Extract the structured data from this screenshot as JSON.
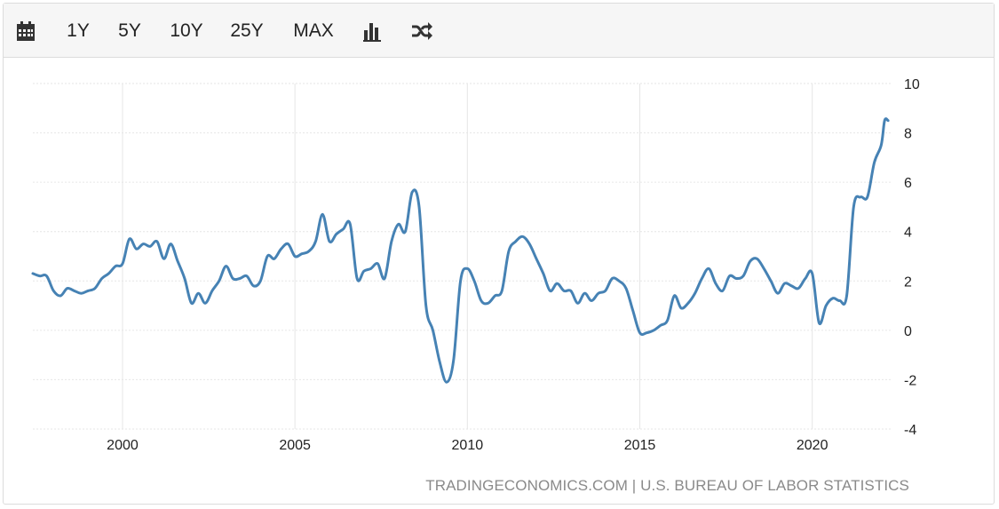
{
  "toolbar": {
    "calendar_icon": "calendar-icon",
    "ranges": [
      "1Y",
      "5Y",
      "10Y",
      "25Y",
      "MAX"
    ],
    "chart_type_icon": "bar-chart-icon",
    "compare_icon": "shuffle-icon"
  },
  "source_text": "TRADINGECONOMICS.COM | U.S. BUREAU OF LABOR STATISTICS",
  "colors": {
    "line": "#4682b4",
    "grid": "#e6e6e6",
    "axis_text": "#222222",
    "source_text": "#8a8a8a"
  },
  "chart_data": {
    "type": "line",
    "title": "",
    "xlabel": "",
    "ylabel": "",
    "xlim": [
      1997.4,
      2022.3
    ],
    "ylim": [
      -4,
      10
    ],
    "y_ticks": [
      -4,
      -2,
      0,
      2,
      4,
      6,
      8,
      10
    ],
    "x_ticks": [
      2000,
      2005,
      2010,
      2015,
      2020
    ],
    "y_tick_labels": [
      "-4",
      "-2",
      "0",
      "2",
      "4",
      "6",
      "8",
      "10"
    ],
    "x_tick_labels": [
      "2000",
      "2005",
      "2010",
      "2015",
      "2020"
    ],
    "grid": true,
    "y_axis_side": "right",
    "series": [
      {
        "x": [
          1997.4,
          1997.6,
          1997.8,
          1998.0,
          1998.2,
          1998.4,
          1998.6,
          1998.8,
          1999.0,
          1999.2,
          1999.4,
          1999.6,
          1999.8,
          2000.0,
          2000.2,
          2000.4,
          2000.6,
          2000.8,
          2001.0,
          2001.2,
          2001.4,
          2001.6,
          2001.8,
          2002.0,
          2002.2,
          2002.4,
          2002.6,
          2002.8,
          2003.0,
          2003.2,
          2003.4,
          2003.6,
          2003.8,
          2004.0,
          2004.2,
          2004.4,
          2004.6,
          2004.8,
          2005.0,
          2005.2,
          2005.4,
          2005.6,
          2005.8,
          2006.0,
          2006.2,
          2006.4,
          2006.6,
          2006.8,
          2007.0,
          2007.2,
          2007.4,
          2007.6,
          2007.8,
          2008.0,
          2008.2,
          2008.4,
          2008.6,
          2008.8,
          2009.0,
          2009.2,
          2009.4,
          2009.6,
          2009.8,
          2010.0,
          2010.2,
          2010.4,
          2010.6,
          2010.8,
          2011.0,
          2011.2,
          2011.4,
          2011.6,
          2011.8,
          2012.0,
          2012.2,
          2012.4,
          2012.6,
          2012.8,
          2013.0,
          2013.2,
          2013.4,
          2013.6,
          2013.8,
          2014.0,
          2014.2,
          2014.4,
          2014.6,
          2014.8,
          2015.0,
          2015.2,
          2015.4,
          2015.6,
          2015.8,
          2016.0,
          2016.2,
          2016.4,
          2016.6,
          2016.8,
          2017.0,
          2017.2,
          2017.4,
          2017.6,
          2017.8,
          2018.0,
          2018.2,
          2018.4,
          2018.6,
          2018.8,
          2019.0,
          2019.2,
          2019.4,
          2019.6,
          2019.8,
          2020.0,
          2020.2,
          2020.4,
          2020.6,
          2020.8,
          2021.0,
          2021.2,
          2021.4,
          2021.6,
          2021.8,
          2022.0,
          2022.1,
          2022.2
        ],
        "y": [
          2.3,
          2.2,
          2.2,
          1.6,
          1.4,
          1.7,
          1.6,
          1.5,
          1.6,
          1.7,
          2.1,
          2.3,
          2.6,
          2.7,
          3.7,
          3.3,
          3.5,
          3.4,
          3.6,
          2.9,
          3.5,
          2.8,
          2.1,
          1.1,
          1.5,
          1.1,
          1.6,
          2.0,
          2.6,
          2.1,
          2.1,
          2.2,
          1.8,
          2.0,
          3.0,
          2.9,
          3.3,
          3.5,
          3.0,
          3.1,
          3.2,
          3.6,
          4.7,
          3.6,
          3.9,
          4.1,
          4.3,
          2.1,
          2.4,
          2.5,
          2.7,
          2.1,
          3.6,
          4.3,
          4.0,
          5.6,
          5.0,
          1.0,
          0.0,
          -1.3,
          -2.1,
          -1.2,
          2.0,
          2.5,
          2.0,
          1.2,
          1.1,
          1.4,
          1.6,
          3.2,
          3.6,
          3.8,
          3.5,
          2.9,
          2.3,
          1.6,
          1.9,
          1.6,
          1.6,
          1.1,
          1.5,
          1.2,
          1.5,
          1.6,
          2.1,
          2.0,
          1.7,
          0.8,
          -0.1,
          -0.1,
          0.0,
          0.2,
          0.4,
          1.4,
          0.9,
          1.1,
          1.5,
          2.1,
          2.5,
          1.9,
          1.6,
          2.2,
          2.1,
          2.2,
          2.8,
          2.9,
          2.5,
          2.0,
          1.5,
          1.9,
          1.8,
          1.7,
          2.1,
          2.3,
          0.3,
          1.0,
          1.3,
          1.2,
          1.4,
          5.0,
          5.4,
          5.4,
          6.8,
          7.5,
          8.5,
          8.5
        ]
      }
    ]
  }
}
